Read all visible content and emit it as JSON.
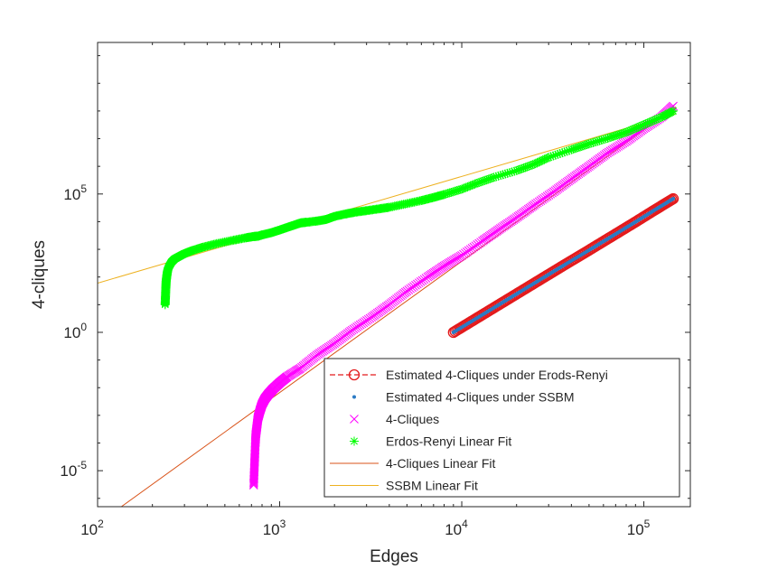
{
  "chart_data": {
    "type": "scatter",
    "xlabel": "Edges",
    "ylabel": "4-cliques",
    "x_scale": "log",
    "y_scale": "log",
    "xlim": [
      100,
      180000
    ],
    "ylim": [
      5e-07,
      30000000000
    ],
    "grid": false,
    "legend_position": "bottom-right",
    "x_ticks": [
      {
        "value": 100,
        "base": "10",
        "exp": "2"
      },
      {
        "value": 1000,
        "base": "10",
        "exp": "3"
      },
      {
        "value": 10000,
        "base": "10",
        "exp": "4"
      },
      {
        "value": 100000,
        "base": "10",
        "exp": "5"
      }
    ],
    "y_ticks": [
      {
        "value": 1e-05,
        "base": "10",
        "exp": "-5"
      },
      {
        "value": 1,
        "base": "10",
        "exp": "0"
      },
      {
        "value": 100000,
        "base": "10",
        "exp": "5"
      }
    ],
    "series": [
      {
        "name": "Estimated 4-Cliques under Erods-Renyi",
        "style": "circle-dashed",
        "color": "#e31a1c",
        "x": [
          9000,
          12000,
          16000,
          21000,
          28000,
          37000,
          50000,
          66000,
          88000,
          115000,
          145000
        ],
        "y": [
          1,
          3.16,
          9.99,
          29.6,
          93.6,
          285,
          933,
          2830,
          8930,
          26700,
          67400
        ]
      },
      {
        "name": "Estimated 4-Cliques under SSBM",
        "style": "dot",
        "color": "#2b7bc4",
        "x": [
          9000,
          12000,
          16000,
          21000,
          28000,
          37000,
          50000,
          66000,
          88000,
          115000,
          145000
        ],
        "y": [
          1,
          3.16,
          9.99,
          29.6,
          93.6,
          285,
          933,
          2830,
          8930,
          26700,
          67400
        ]
      },
      {
        "name": "4-Cliques",
        "style": "x",
        "color": "#ff00ff",
        "x": [
          720,
          725,
          730,
          735,
          740,
          750,
          760,
          780,
          800,
          830,
          870,
          920,
          1000,
          1100,
          1300,
          1600,
          2000,
          2500,
          3200,
          4000,
          5000,
          6500,
          8000,
          10000,
          13000,
          16000,
          20000,
          25000,
          32000,
          40000,
          50000,
          63000,
          80000,
          100000,
          125000,
          145000
        ],
        "y": [
          3e-06,
          1e-05,
          3e-05,
          0.0001,
          0.0002,
          0.0004,
          0.0008,
          0.0015,
          0.0025,
          0.004,
          0.006,
          0.009,
          0.015,
          0.025,
          0.05,
          0.15,
          0.4,
          1.2,
          3.5,
          10,
          31,
          100,
          250,
          600,
          2000,
          5200,
          14000,
          40000,
          120000,
          350000,
          1000000,
          3000000,
          8000000,
          23000000,
          60000000,
          150000000
        ]
      },
      {
        "name": "Erdos-Renyi Linear Fit",
        "style": "asterisk",
        "color": "#00ff00",
        "x": [
          235,
          236,
          237,
          238,
          240,
          242,
          245,
          250,
          255,
          265,
          280,
          300,
          330,
          380,
          450,
          550,
          650,
          720,
          760,
          800,
          900,
          1000,
          1100,
          1200,
          1300,
          1400,
          1600,
          1800,
          2000,
          2300,
          2600,
          3000,
          3500,
          4000,
          5000,
          6000,
          7000,
          8000,
          10000,
          12000,
          15000,
          20000,
          25000,
          30000,
          40000,
          50000,
          65000,
          80000,
          100000,
          125000,
          145000
        ],
        "y": [
          10,
          20,
          40,
          70,
          110,
          160,
          220,
          280,
          350,
          450,
          550,
          700,
          900,
          1200,
          1600,
          2100,
          2600,
          2900,
          3000,
          3300,
          4000,
          5000,
          6200,
          7500,
          9000,
          9500,
          10500,
          12000,
          15500,
          19000,
          22000,
          25000,
          29000,
          33000,
          45000,
          58000,
          75000,
          96000,
          150000,
          240000,
          400000,
          700000,
          1200000,
          2100000,
          4000000,
          6500000,
          11000000,
          17000000,
          32000000,
          60000000,
          100000000
        ]
      },
      {
        "name": "4-Cliques Linear Fit",
        "style": "line",
        "color": "#d95319",
        "x": [
          135,
          150000
        ],
        "y": [
          5e-07,
          140000000
        ]
      },
      {
        "name": "SSBM Linear Fit",
        "style": "line",
        "color": "#edb120",
        "x": [
          100,
          150000
        ],
        "y": [
          60,
          80000000
        ]
      }
    ]
  }
}
